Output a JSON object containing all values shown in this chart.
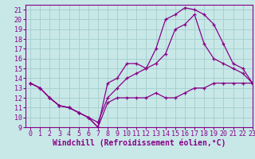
{
  "xlabel": "Windchill (Refroidissement éolien,°C)",
  "ylabel": "",
  "xlim": [
    -0.5,
    23
  ],
  "ylim": [
    9,
    21.5
  ],
  "xticks": [
    0,
    1,
    2,
    3,
    4,
    5,
    6,
    7,
    8,
    9,
    10,
    11,
    12,
    13,
    14,
    15,
    16,
    17,
    18,
    19,
    20,
    21,
    22,
    23
  ],
  "yticks": [
    9,
    10,
    11,
    12,
    13,
    14,
    15,
    16,
    17,
    18,
    19,
    20,
    21
  ],
  "bg_color": "#c8e8e8",
  "line_color": "#880088",
  "grid_color": "#a8d0d0",
  "line1_x": [
    0,
    1,
    2,
    3,
    4,
    5,
    6,
    7,
    8,
    9,
    10,
    11,
    12,
    13,
    14,
    15,
    16,
    17,
    18,
    19,
    20,
    21,
    22,
    23
  ],
  "line1_y": [
    13.5,
    13.0,
    12.0,
    11.2,
    11.0,
    10.5,
    10.0,
    9.0,
    11.5,
    12.0,
    12.0,
    12.0,
    12.0,
    12.5,
    12.0,
    12.0,
    12.5,
    13.0,
    13.0,
    13.5,
    13.5,
    13.5,
    13.5,
    13.5
  ],
  "line2_x": [
    0,
    1,
    2,
    3,
    4,
    5,
    6,
    7,
    8,
    9,
    10,
    11,
    12,
    13,
    14,
    15,
    16,
    17,
    18,
    19,
    20,
    21,
    22,
    23
  ],
  "line2_y": [
    13.5,
    13.0,
    12.0,
    11.2,
    11.0,
    10.5,
    10.0,
    9.0,
    13.5,
    14.0,
    15.5,
    15.5,
    15.0,
    17.0,
    20.0,
    20.5,
    21.2,
    21.0,
    20.5,
    19.5,
    17.5,
    15.5,
    15.0,
    13.5
  ],
  "line3_x": [
    0,
    1,
    2,
    3,
    4,
    5,
    6,
    7,
    8,
    9,
    10,
    11,
    12,
    13,
    14,
    15,
    16,
    17,
    18,
    19,
    20,
    21,
    22,
    23
  ],
  "line3_y": [
    13.5,
    13.0,
    12.0,
    11.2,
    11.0,
    10.5,
    10.0,
    9.5,
    12.0,
    13.0,
    14.0,
    14.5,
    15.0,
    15.5,
    16.5,
    19.0,
    19.5,
    20.5,
    17.5,
    16.0,
    15.5,
    15.0,
    14.5,
    13.5
  ],
  "tick_fontsize": 6,
  "label_fontsize": 7
}
